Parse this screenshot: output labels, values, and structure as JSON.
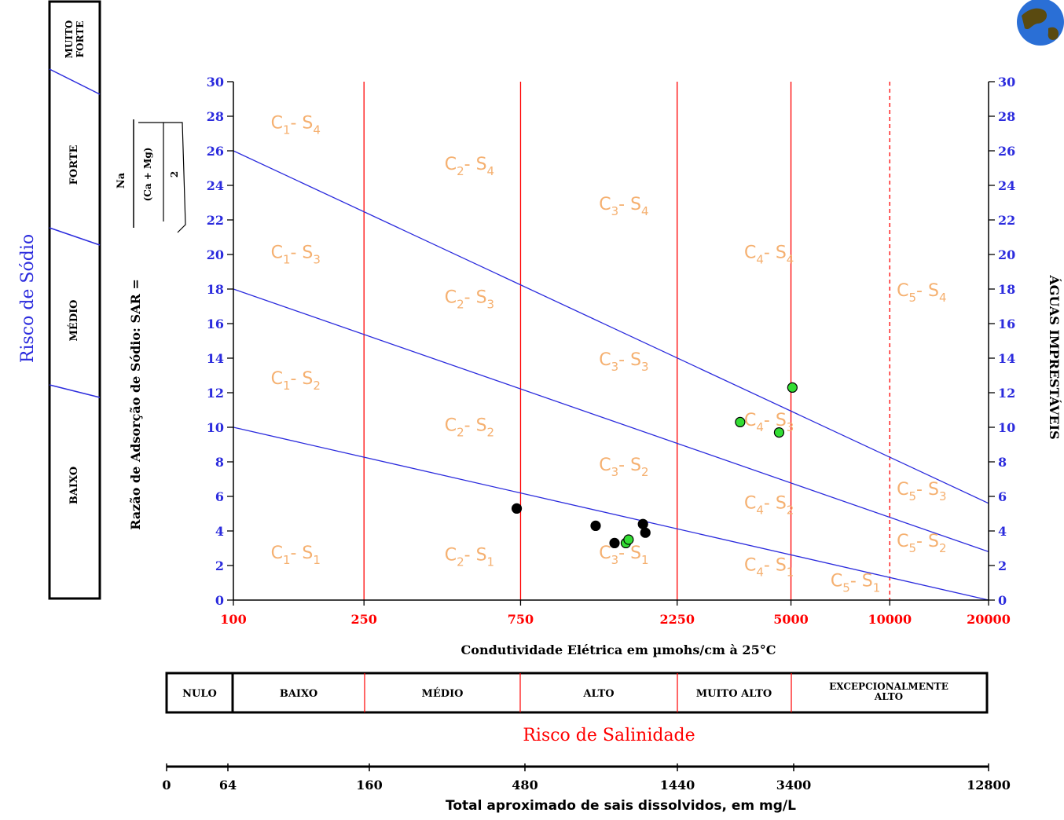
{
  "chart_data": {
    "type": "scatter",
    "title": "",
    "xlabel": "Condutividade Elétrica em µmohs/cm à 25°C",
    "ylabel": "Razão de Adsorção de Sódio: SAR =",
    "x_scale": "log",
    "x_ticks": [
      "100",
      "250",
      "750",
      "2250",
      "5000",
      "10000",
      "20000"
    ],
    "y_ticks": [
      "0",
      "2",
      "4",
      "6",
      "8",
      "10",
      "12",
      "14",
      "16",
      "18",
      "20",
      "22",
      "24",
      "26",
      "28",
      "30"
    ],
    "ylim": [
      0,
      30
    ],
    "xlim": [
      100,
      20000
    ],
    "sar_formula": {
      "num": "Na",
      "den": "(Ca  +  Mg)",
      "two": "2"
    },
    "right_axis_label": "ÁGUAS IMPRESTÁVEIS",
    "sodium_risk_title": "Risco de Sódio",
    "sodium_classes": [
      "BAIXO",
      "MÉDIO",
      "FORTE",
      "MUITO FORTE"
    ],
    "salinity_title": "Risco de Salinidade",
    "salinity_classes": [
      "NULO",
      "BAIXO",
      "MÉDIO",
      "ALTO",
      "MUITO ALTO",
      "EXCEPCIONALMENTE ALTO"
    ],
    "tds_label": "Total aproximado de sais dissolvidos, em mg/L",
    "tds_ticks": [
      "0",
      "64",
      "160",
      "480",
      "1440",
      "3400",
      "12800"
    ],
    "class_lines": [
      {
        "name": "S1/S2",
        "x": [
          100,
          20000
        ],
        "y": [
          10,
          0
        ]
      },
      {
        "name": "S2/S3",
        "x": [
          100,
          20000
        ],
        "y": [
          18,
          2.8
        ]
      },
      {
        "name": "S3/S4",
        "x": [
          100,
          20000
        ],
        "y": [
          26,
          5.6
        ]
      }
    ],
    "vertical_lines": [
      250,
      750,
      2250,
      5000
    ],
    "dashed_line": 10000,
    "zones": [
      {
        "c": "1",
        "s": "4",
        "x": 130,
        "y": 27.3
      },
      {
        "c": "2",
        "s": "4",
        "x": 440,
        "y": 24.9
      },
      {
        "c": "3",
        "s": "4",
        "x": 1300,
        "y": 22.6
      },
      {
        "c": "4",
        "s": "4",
        "x": 3600,
        "y": 19.8
      },
      {
        "c": "5",
        "s": "4",
        "x": 10500,
        "y": 17.6
      },
      {
        "c": "1",
        "s": "3",
        "x": 130,
        "y": 19.8
      },
      {
        "c": "2",
        "s": "3",
        "x": 440,
        "y": 17.2
      },
      {
        "c": "3",
        "s": "3",
        "x": 1300,
        "y": 13.6
      },
      {
        "c": "4",
        "s": "3",
        "x": 3600,
        "y": 10.1
      },
      {
        "c": "5",
        "s": "3",
        "x": 10500,
        "y": 6.1
      },
      {
        "c": "1",
        "s": "2",
        "x": 130,
        "y": 12.5
      },
      {
        "c": "2",
        "s": "2",
        "x": 440,
        "y": 9.8
      },
      {
        "c": "3",
        "s": "2",
        "x": 1300,
        "y": 7.5
      },
      {
        "c": "4",
        "s": "2",
        "x": 3600,
        "y": 5.3
      },
      {
        "c": "5",
        "s": "2",
        "x": 10500,
        "y": 3.1
      },
      {
        "c": "1",
        "s": "1",
        "x": 130,
        "y": 2.4
      },
      {
        "c": "2",
        "s": "1",
        "x": 440,
        "y": 2.3
      },
      {
        "c": "3",
        "s": "1",
        "x": 1300,
        "y": 2.4
      },
      {
        "c": "4",
        "s": "1",
        "x": 3600,
        "y": 1.7
      },
      {
        "c": "5",
        "s": "1",
        "x": 6600,
        "y": 0.8
      }
    ],
    "series": [
      {
        "color": "#000000",
        "points": [
          {
            "x": 730,
            "y": 5.3
          },
          {
            "x": 1270,
            "y": 4.3
          },
          {
            "x": 1450,
            "y": 3.3
          },
          {
            "x": 1770,
            "y": 4.4
          },
          {
            "x": 1800,
            "y": 3.9
          }
        ]
      },
      {
        "color": "#33dd33",
        "points": [
          {
            "x": 1570,
            "y": 3.3
          },
          {
            "x": 1600,
            "y": 3.5
          },
          {
            "x": 3500,
            "y": 10.3
          },
          {
            "x": 4600,
            "y": 9.7
          },
          {
            "x": 5050,
            "y": 12.3
          }
        ]
      }
    ]
  }
}
